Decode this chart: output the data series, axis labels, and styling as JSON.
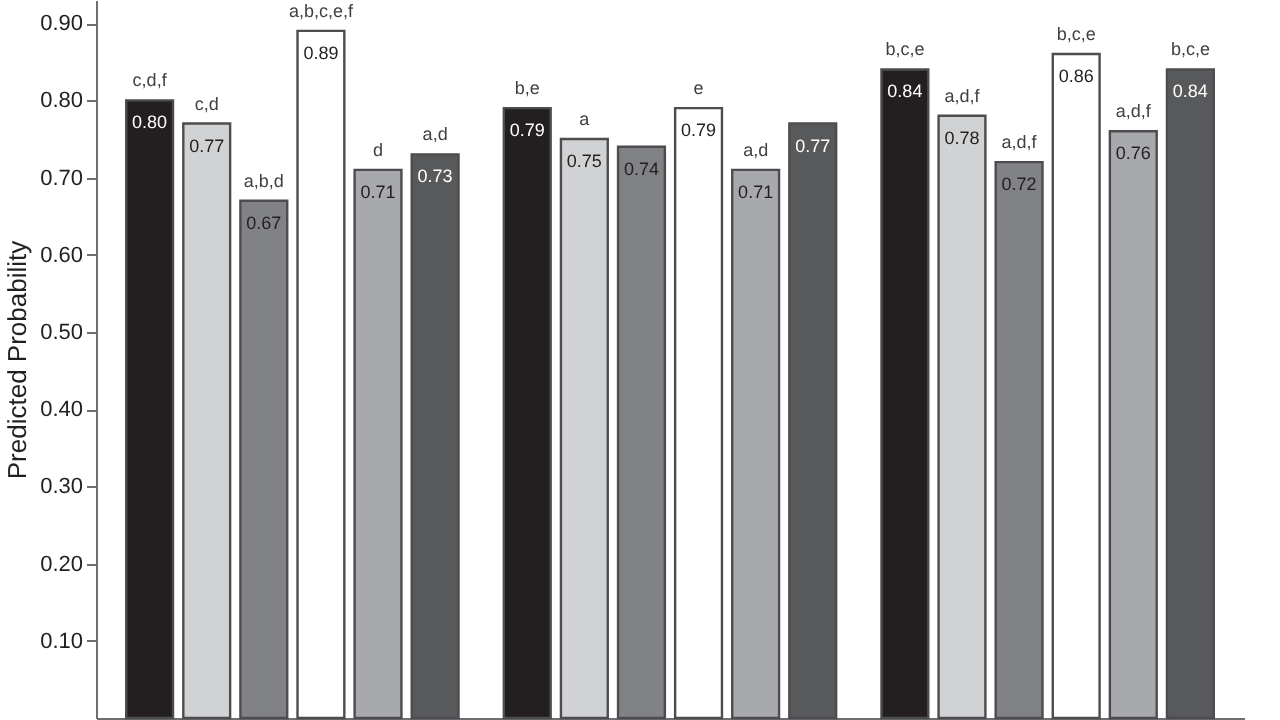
{
  "chart_data": {
    "type": "bar",
    "ylabel": "Predicted Probability",
    "categories": [
      null,
      null,
      null
    ],
    "series": [
      {
        "color": "#231f20",
        "values": [
          0.8,
          0.79,
          0.84
        ],
        "value_labels": [
          "0.80",
          "0.79",
          "0.84"
        ]
      },
      {
        "color": "#d1d2d4",
        "values": [
          0.77,
          0.75,
          0.78
        ],
        "value_labels": [
          "0.77",
          "0.75",
          "0.78"
        ]
      },
      {
        "color": "#808285",
        "values": [
          0.67,
          0.74,
          0.72
        ],
        "value_labels": [
          "0.67",
          "0.74",
          "0.72"
        ]
      },
      {
        "color": "#ffffff",
        "values": [
          0.89,
          0.79,
          0.86
        ],
        "value_labels": [
          "0.89",
          "0.79",
          "0.86"
        ]
      },
      {
        "color": "#a7a9ac",
        "values": [
          0.71,
          0.71,
          0.76
        ],
        "value_labels": [
          "0.71",
          "0.71",
          "0.76"
        ]
      },
      {
        "color": "#58595b",
        "values": [
          0.73,
          0.77,
          0.84
        ],
        "value_labels": [
          "0.73",
          "0.77",
          "0.84"
        ]
      }
    ],
    "annotations": [
      {
        "text": "c,d,f",
        "y": 0.8
      },
      {
        "text": "c,d",
        "y": 0.77
      },
      {
        "text": "a,b,d",
        "y": 0.67
      },
      {
        "text": "a,b,c,e,f",
        "y": 0.89
      },
      {
        "text": "d",
        "y": 0.71
      },
      {
        "text": "a,d",
        "y": 0.73
      },
      {
        "text": "b,e",
        "y": 0.79
      },
      {
        "text": "a",
        "y": 0.75
      },
      {
        "text": "e",
        "y": 0.79
      },
      {
        "text": "a,d",
        "y": 0.71
      },
      {
        "text": "b,c,e",
        "y": 0.84
      },
      {
        "text": "a,d,f",
        "y": 0.78
      },
      {
        "text": "a,d,f",
        "y": 0.72
      },
      {
        "text": "b,c,e",
        "y": 0.86
      },
      {
        "text": "a,d,f",
        "y": 0.76
      },
      {
        "text": "b,c,e",
        "y": 0.84
      }
    ],
    "ylim": [
      0,
      0.93
    ],
    "yticks": [
      {
        "value": 0.1,
        "label": "0.10"
      },
      {
        "value": 0.2,
        "label": "0.20"
      },
      {
        "value": 0.3,
        "label": "0.30"
      },
      {
        "value": 0.4,
        "label": "0.40"
      },
      {
        "value": 0.5,
        "label": "0.50"
      },
      {
        "value": 0.6,
        "label": "0.60"
      },
      {
        "value": 0.7,
        "label": "0.70"
      },
      {
        "value": 0.8,
        "label": "0.80"
      },
      {
        "value": 0.9,
        "label": "0.90"
      }
    ],
    "legend": false,
    "grid": false,
    "tick_labels": "y"
  }
}
